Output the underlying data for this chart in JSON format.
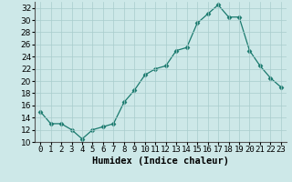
{
  "x": [
    0,
    1,
    2,
    3,
    4,
    5,
    6,
    7,
    8,
    9,
    10,
    11,
    12,
    13,
    14,
    15,
    16,
    17,
    18,
    19,
    20,
    21,
    22,
    23
  ],
  "y": [
    15.0,
    13.0,
    13.0,
    12.0,
    10.5,
    12.0,
    12.5,
    13.0,
    16.5,
    18.5,
    21.0,
    22.0,
    22.5,
    25.0,
    25.5,
    29.5,
    31.0,
    32.5,
    30.5,
    30.5,
    25.0,
    22.5,
    20.5,
    19.0
  ],
  "xlabel": "Humidex (Indice chaleur)",
  "ylim": [
    10,
    33
  ],
  "xlim": [
    -0.5,
    23.5
  ],
  "yticks": [
    10,
    12,
    14,
    16,
    18,
    20,
    22,
    24,
    26,
    28,
    30,
    32
  ],
  "xtick_labels": [
    "0",
    "1",
    "2",
    "3",
    "4",
    "5",
    "6",
    "7",
    "8",
    "9",
    "10",
    "11",
    "12",
    "13",
    "14",
    "15",
    "16",
    "17",
    "18",
    "19",
    "20",
    "21",
    "22",
    "23"
  ],
  "line_color": "#1a7a6e",
  "marker": "D",
  "marker_size": 2.5,
  "bg_color": "#cde8e8",
  "grid_color": "#a8cccc",
  "label_fontsize": 7.5,
  "tick_fontsize": 6.5
}
